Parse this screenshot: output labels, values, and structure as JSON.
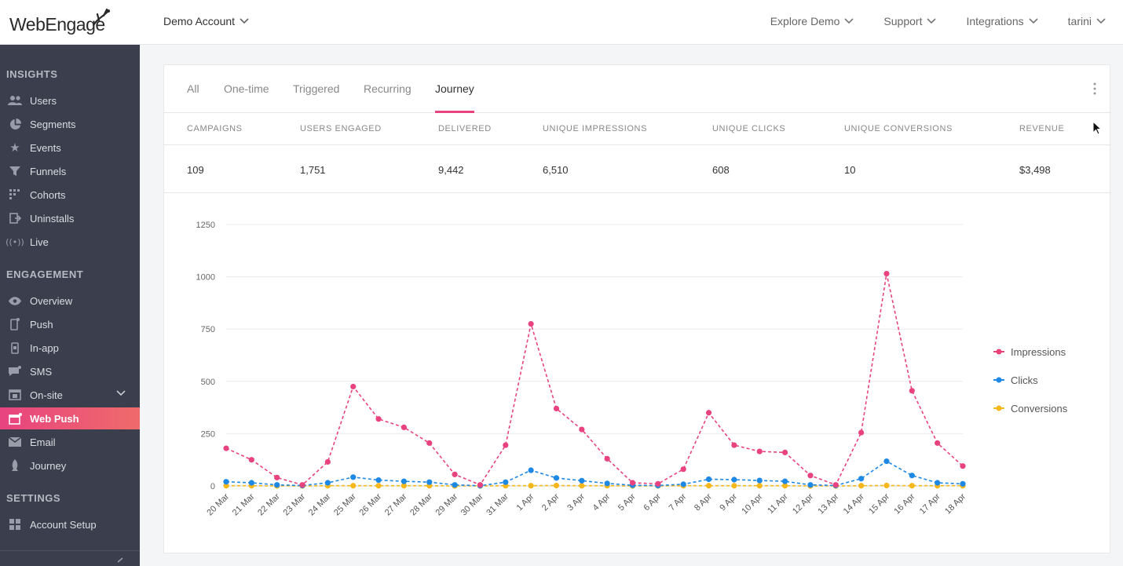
{
  "brand": {
    "logo_text": "WebEngage",
    "accent": "#e8437f"
  },
  "header": {
    "account": "Demo Account",
    "nav": [
      "Explore Demo",
      "Support",
      "Integrations",
      "tarini"
    ]
  },
  "sidebar": {
    "sections": [
      {
        "title": "INSIGHTS",
        "items": [
          {
            "label": "Users",
            "icon": "users-icon"
          },
          {
            "label": "Segments",
            "icon": "pie-icon"
          },
          {
            "label": "Events",
            "icon": "star-icon"
          },
          {
            "label": "Funnels",
            "icon": "funnel-icon"
          },
          {
            "label": "Cohorts",
            "icon": "grid-icon"
          },
          {
            "label": "Uninstalls",
            "icon": "exit-icon"
          },
          {
            "label": "Live",
            "icon": "broadcast-icon"
          }
        ]
      },
      {
        "title": "ENGAGEMENT",
        "items": [
          {
            "label": "Overview",
            "icon": "eye-icon"
          },
          {
            "label": "Push",
            "icon": "mobile-icon"
          },
          {
            "label": "In-app",
            "icon": "tablet-icon"
          },
          {
            "label": "SMS",
            "icon": "message-icon"
          },
          {
            "label": "On-site",
            "icon": "browser-icon"
          },
          {
            "label": "Web Push",
            "icon": "web-push-icon"
          },
          {
            "label": "Email",
            "icon": "mail-icon"
          },
          {
            "label": "Journey",
            "icon": "rocket-icon"
          }
        ]
      },
      {
        "title": "SETTINGS",
        "items": [
          {
            "label": "Account Setup",
            "icon": "settings-grid-icon"
          }
        ]
      }
    ],
    "active": "Web Push"
  },
  "tabs": [
    "All",
    "One-time",
    "Triggered",
    "Recurring",
    "Journey"
  ],
  "active_tab": "Journey",
  "stats": {
    "headers": [
      "CAMPAIGNS",
      "USERS ENGAGED",
      "DELIVERED",
      "UNIQUE IMPRESSIONS",
      "UNIQUE CLICKS",
      "UNIQUE CONVERSIONS",
      "REVENUE"
    ],
    "values": [
      "109",
      "1,751",
      "9,442",
      "6,510",
      "608",
      "10",
      "$3,498"
    ]
  },
  "chart_data": {
    "type": "line",
    "title": "",
    "xlabel": "",
    "ylabel": "",
    "ylim": [
      0,
      1250
    ],
    "yticks": [
      0,
      250,
      500,
      750,
      1000,
      1250
    ],
    "grid": true,
    "legend_position": "right",
    "categories": [
      "20 Mar",
      "21 Mar",
      "22 Mar",
      "23 Mar",
      "24 Mar",
      "25 Mar",
      "26 Mar",
      "27 Mar",
      "28 Mar",
      "29 Mar",
      "30 Mar",
      "31 Mar",
      "1 Apr",
      "2 Apr",
      "3 Apr",
      "4 Apr",
      "5 Apr",
      "6 Apr",
      "7 Apr",
      "8 Apr",
      "9 Apr",
      "10 Apr",
      "11 Apr",
      "12 Apr",
      "13 Apr",
      "14 Apr",
      "15 Apr",
      "16 Apr",
      "17 Apr",
      "18 Apr"
    ],
    "series": [
      {
        "name": "Impressions",
        "color": "#e8437f",
        "values": [
          180,
          125,
          40,
          5,
          115,
          475,
          320,
          280,
          205,
          55,
          5,
          195,
          775,
          370,
          270,
          130,
          15,
          10,
          80,
          350,
          195,
          165,
          160,
          50,
          5,
          255,
          1015,
          455,
          205,
          95
        ]
      },
      {
        "name": "Clicks",
        "color": "#1e88e5",
        "values": [
          20,
          15,
          5,
          2,
          15,
          42,
          28,
          22,
          18,
          5,
          1,
          18,
          75,
          38,
          25,
          12,
          3,
          2,
          8,
          32,
          30,
          26,
          22,
          5,
          2,
          35,
          118,
          50,
          15,
          10
        ]
      },
      {
        "name": "Conversions",
        "color": "#f5b81c",
        "values": [
          1,
          1,
          0,
          0,
          1,
          1,
          1,
          1,
          1,
          0,
          0,
          1,
          1,
          2,
          1,
          1,
          0,
          0,
          1,
          1,
          1,
          1,
          1,
          0,
          0,
          1,
          2,
          1,
          1,
          1
        ]
      }
    ]
  }
}
